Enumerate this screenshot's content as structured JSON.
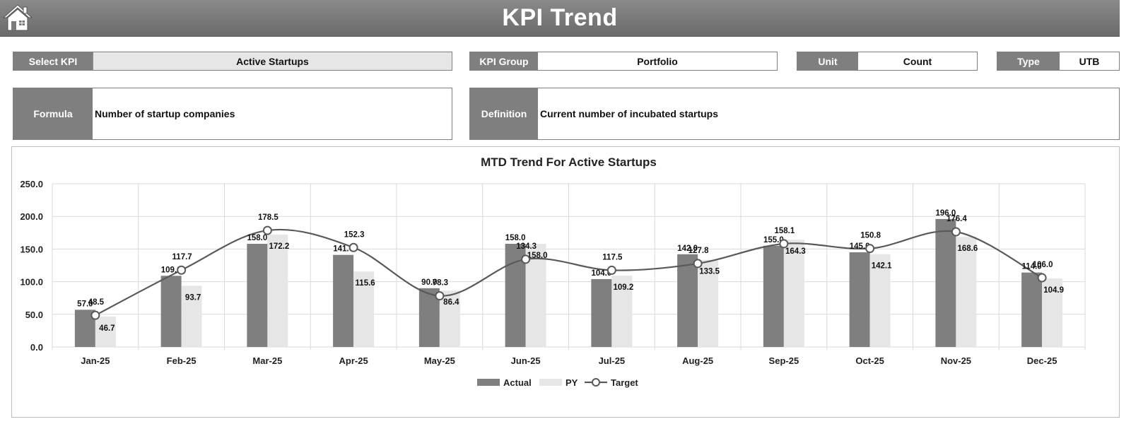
{
  "header": {
    "title": "KPI Trend",
    "home_icon": "home-icon"
  },
  "selectors": {
    "select_kpi_label": "Select KPI",
    "select_kpi_value": "Active Startups",
    "kpi_group_label": "KPI Group",
    "kpi_group_value": "Portfolio",
    "unit_label": "Unit",
    "unit_value": "Count",
    "type_label": "Type",
    "type_value": "UTB"
  },
  "details": {
    "formula_label": "Formula",
    "formula_value": "Number of startup companies",
    "definition_label": "Definition",
    "definition_value": "Current number of incubated startups"
  },
  "colors": {
    "actual": "#7f7f7f",
    "py": "#e6e6e6",
    "target": "#595959",
    "header": "#7f7f7f"
  },
  "chart_data": {
    "type": "bar",
    "title": "MTD Trend For Active Startups",
    "categories": [
      "Jan-25",
      "Feb-25",
      "Mar-25",
      "Apr-25",
      "May-25",
      "Jun-25",
      "Jul-25",
      "Aug-25",
      "Sep-25",
      "Oct-25",
      "Nov-25",
      "Dec-25"
    ],
    "series": [
      {
        "name": "Actual",
        "type": "bar",
        "values": [
          57.0,
          109.0,
          158.0,
          141.0,
          90.0,
          158.0,
          104.0,
          142.0,
          155.0,
          145.0,
          196.0,
          114.0
        ]
      },
      {
        "name": "PY",
        "type": "bar",
        "values": [
          46.7,
          93.7,
          172.2,
          115.6,
          86.4,
          158.0,
          109.2,
          133.5,
          164.3,
          142.1,
          168.6,
          104.9
        ]
      },
      {
        "name": "Target",
        "type": "line",
        "values": [
          48.5,
          117.7,
          178.5,
          152.3,
          78.3,
          134.3,
          117.5,
          127.8,
          158.1,
          150.8,
          176.4,
          106.0
        ]
      }
    ],
    "ylim": [
      0,
      250
    ],
    "yticks": [
      "0.0",
      "50.0",
      "100.0",
      "150.0",
      "200.0",
      "250.0"
    ],
    "grid": true,
    "legend": "bottom"
  }
}
